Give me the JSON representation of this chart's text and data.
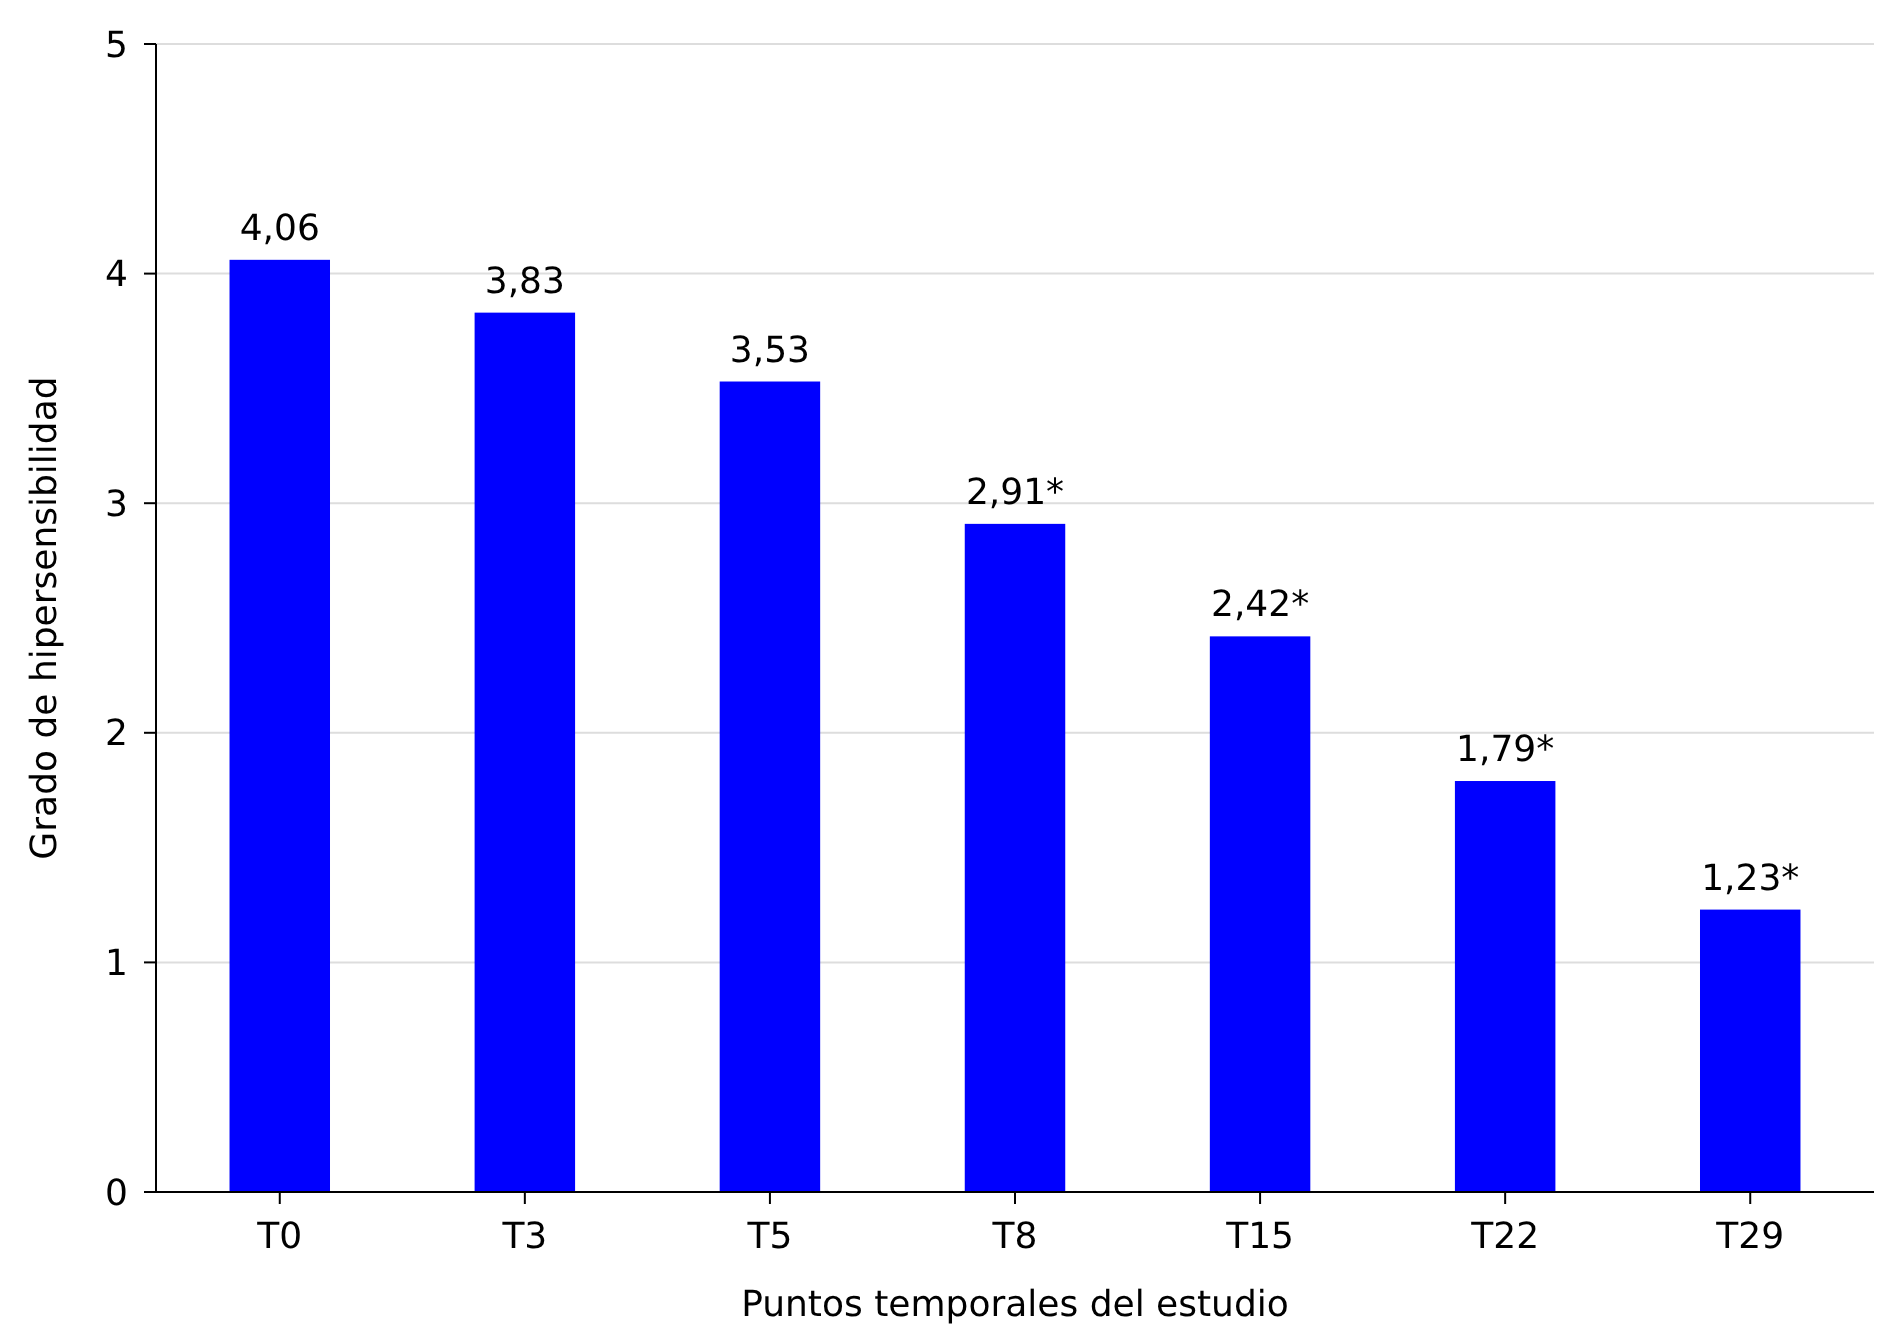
{
  "chart_data": {
    "type": "bar",
    "xlabel": "Puntos temporales del estudio",
    "ylabel": "Grado de hipersensibilidad",
    "categories": [
      "T0",
      "T3",
      "T5",
      "T8",
      "T15",
      "T22",
      "T29"
    ],
    "values": [
      4.06,
      3.83,
      3.53,
      2.91,
      2.42,
      1.79,
      1.23
    ],
    "value_labels": [
      "4,06",
      "3,83",
      "3,53",
      "2,91*",
      "2,42*",
      "1,79*",
      "1,23*"
    ],
    "color": "#0000ff",
    "ylim": [
      0,
      5
    ],
    "yticks": [
      0,
      1,
      2,
      3,
      4,
      5
    ],
    "grid": "y"
  }
}
